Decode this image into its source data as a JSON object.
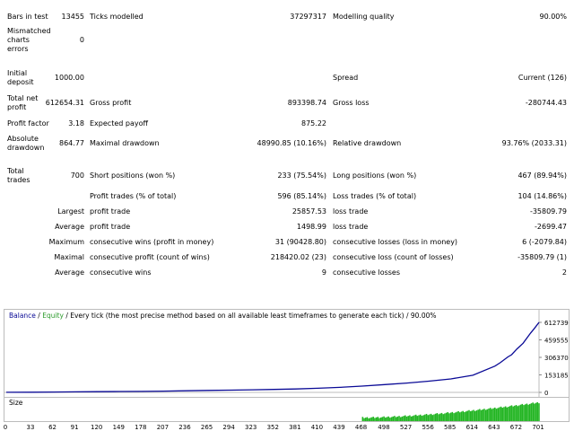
{
  "report": {
    "bars_label": "Bars in test",
    "bars_value": "13455",
    "ticks_label": "Ticks modelled",
    "ticks_value": "37297317",
    "quality_label": "Modelling quality",
    "quality_value": "90.00%",
    "mismatch_label": "Mismatched charts errors",
    "mismatch_value": "0",
    "deposit_label": "Initial deposit",
    "deposit_value": "1000.00",
    "spread_label": "Spread",
    "spread_value": "Current (126)",
    "netprofit_label": "Total net profit",
    "netprofit_value": "612654.31",
    "grossprofit_label": "Gross profit",
    "grossprofit_value": "893398.74",
    "grossloss_label": "Gross loss",
    "grossloss_value": "-280744.43",
    "pf_label": "Profit factor",
    "pf_value": "3.18",
    "payoff_label": "Expected payoff",
    "payoff_value": "875.22",
    "absdd_label": "Absolute drawdown",
    "absdd_value": "864.77",
    "maxdd_label": "Maximal drawdown",
    "maxdd_value": "48990.85 (10.16%)",
    "reldd_label": "Relative drawdown",
    "reldd_value": "93.76% (2033.31)",
    "trades_label": "Total trades",
    "trades_value": "700",
    "short_label": "Short positions (won %)",
    "short_value": "233 (75.54%)",
    "long_label": "Long positions (won %)",
    "long_value": "467 (89.94%)",
    "profittrades_label": "Profit trades (% of total)",
    "profittrades_value": "596 (85.14%)",
    "losstrades_label": "Loss trades (% of total)",
    "losstrades_value": "104 (14.86%)",
    "largest": "Largest",
    "largest_p_label": "profit trade",
    "largest_p_value": "25857.53",
    "largest_l_label": "loss trade",
    "largest_l_value": "-35809.79",
    "average": "Average",
    "average_p_label": "profit trade",
    "average_p_value": "1498.99",
    "average_l_label": "loss trade",
    "average_l_value": "-2699.47",
    "maximum": "Maximum",
    "maxwins_label": "consecutive wins (profit in money)",
    "maxwins_value": "31 (90428.80)",
    "maxlosses_label": "consecutive losses (loss in money)",
    "maxlosses_value": "6 (-2079.84)",
    "maximal": "Maximal",
    "maxprofit_label": "consecutive profit (count of wins)",
    "maxprofit_value": "218420.02 (23)",
    "maxloss_label": "consecutive loss (count of losses)",
    "maxloss_value": "-35809.79 (1)",
    "average2": "Average",
    "avgwins_label": "consecutive wins",
    "avgwins_value": "9",
    "avglosses_label": "consecutive losses",
    "avglosses_value": "2"
  },
  "legend": {
    "balance": "Balance",
    "sep1": " / ",
    "equity": "Equity",
    "rest": " / Every tick (the most precise method based on all available least timeframes to generate each tick) / 90.00%"
  },
  "colors": {
    "balance": "#0a0a96",
    "equity": "#2a9a2a",
    "size": "#22b522",
    "axis": "#bcbcbc"
  },
  "chart_data": {
    "type": "line",
    "y_ticks": [
      "612739",
      "459555",
      "306370",
      "153185",
      "0"
    ],
    "ylim": [
      0,
      612739
    ],
    "x_ticks": [
      "0",
      "33",
      "62",
      "91",
      "120",
      "149",
      "178",
      "207",
      "236",
      "265",
      "294",
      "323",
      "352",
      "381",
      "410",
      "439",
      "468",
      "498",
      "527",
      "556",
      "585",
      "614",
      "643",
      "672",
      "701"
    ],
    "xlim": [
      0,
      701
    ],
    "size_label": "Size",
    "series": [
      {
        "name": "Balance",
        "x": [
          0,
          33,
          62,
          91,
          120,
          149,
          178,
          207,
          236,
          265,
          294,
          323,
          352,
          381,
          410,
          439,
          468,
          498,
          527,
          556,
          585,
          614,
          643,
          650,
          660,
          665,
          672,
          680,
          690,
          695,
          701
        ],
        "y": [
          1000,
          1500,
          3000,
          4500,
          6000,
          7500,
          9000,
          11000,
          14000,
          17000,
          20000,
          23000,
          26000,
          30000,
          36000,
          44000,
          55000,
          68000,
          82000,
          98000,
          118000,
          150000,
          230000,
          260000,
          310000,
          330000,
          380000,
          430000,
          520000,
          560000,
          612654
        ]
      }
    ],
    "size_bars": {
      "start": 468,
      "end": 701,
      "values_note": ""
    }
  }
}
